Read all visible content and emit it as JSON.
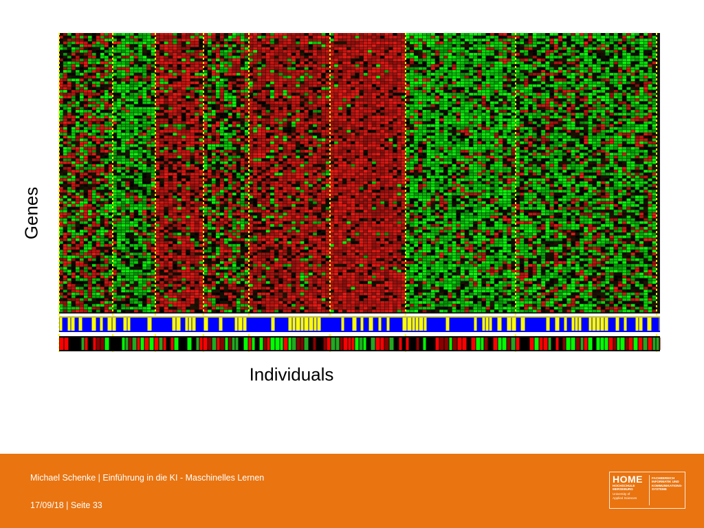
{
  "chart_data": {
    "type": "heatmap",
    "xlabel": "Individuals",
    "ylabel": "Genes",
    "color_scale": [
      "#00ff00",
      "#000000",
      "#ff0000"
    ],
    "cluster_groups": [
      {
        "pattern": "mixed"
      },
      {
        "pattern": "green"
      },
      {
        "pattern": "red"
      },
      {
        "pattern": "mixed"
      },
      {
        "pattern": "red"
      },
      {
        "pattern": "strong-red"
      },
      {
        "pattern": "green"
      },
      {
        "pattern": "mixed-green"
      }
    ],
    "annotation_bars": [
      {
        "colors": [
          "#0000ff",
          "#ffff00"
        ]
      },
      {
        "colors": [
          "#00ff00",
          "#000000",
          "#ff0000"
        ]
      }
    ],
    "separator_color": "#ffff00"
  },
  "footer": {
    "author_line": "Michael Schenke | Einführung in  die KI - Maschinelles Lernen",
    "date_line": "17/09/18 | Seite 33",
    "background": "#e97410"
  },
  "logo": {
    "brand": "HOME",
    "line1": "HOCHSCHULE",
    "line2": "MERSEBURG",
    "sub1": "University of",
    "sub2": "Applied Sciences",
    "dept1": "FACHBEREICH",
    "dept2": "INFORMATIK UND",
    "dept3": "KOMMUNIKATIONS-",
    "dept4": "SYSTEME"
  }
}
